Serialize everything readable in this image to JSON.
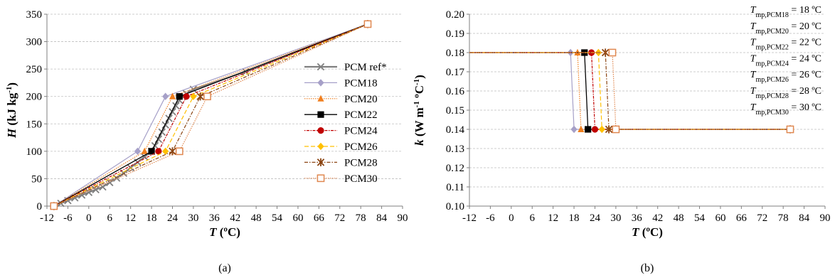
{
  "chart_data": [
    {
      "type": "line",
      "caption": "(a)",
      "xlabel": {
        "symbol": "T",
        "unit": "(ºC)"
      },
      "ylabel": {
        "symbol": "H",
        "unit_pre": "(kJ kg",
        "unit_sup": "-1",
        "unit_post": ")"
      },
      "xlim": [
        -12,
        90
      ],
      "ylim": [
        0,
        350
      ],
      "xticks": [
        -12,
        -6,
        0,
        6,
        12,
        18,
        24,
        30,
        36,
        42,
        48,
        54,
        60,
        66,
        72,
        78,
        84,
        90
      ],
      "yticks": [
        0,
        50,
        100,
        150,
        200,
        250,
        300,
        350
      ],
      "grid": "horizontal",
      "legend_position": "right",
      "series": [
        {
          "name": "PCM ref*",
          "color": "#7f7f7f",
          "marker": "x",
          "dash": "",
          "width": 2.2,
          "x": [
            -10,
            -8,
            -6,
            -4,
            -2,
            0,
            2,
            4,
            6,
            8,
            10,
            12,
            14,
            16,
            18,
            19,
            20,
            21,
            22,
            23,
            24,
            25,
            26,
            27,
            28,
            30,
            45,
            80
          ],
          "y": [
            0,
            5,
            10,
            15,
            20,
            25,
            30,
            35,
            43,
            51,
            60,
            70,
            80,
            90,
            100,
            110,
            122,
            135,
            148,
            160,
            172,
            183,
            193,
            200,
            205,
            213,
            245,
            332
          ]
        },
        {
          "name": "PCM18",
          "color": "#a6a0c8",
          "marker": "diamond",
          "dash": "",
          "width": 1.2,
          "x": [
            -10,
            14,
            22,
            80
          ],
          "y": [
            0,
            100,
            200,
            332
          ]
        },
        {
          "name": "PCM20",
          "color": "#f07f1f",
          "marker": "triangle",
          "dash": "1.5,1.5",
          "width": 1.2,
          "x": [
            -10,
            16,
            24,
            80
          ],
          "y": [
            0,
            100,
            200,
            332
          ]
        },
        {
          "name": "PCM22",
          "color": "#000000",
          "marker": "square",
          "dash": "",
          "width": 1.3,
          "x": [
            -10,
            18,
            26,
            80
          ],
          "y": [
            0,
            100,
            200,
            332
          ]
        },
        {
          "name": "PCM24",
          "color": "#c00000",
          "marker": "circle",
          "dash": "1.5,1.5,4,1.5",
          "width": 1.2,
          "x": [
            -10,
            20,
            28,
            80
          ],
          "y": [
            0,
            100,
            200,
            332
          ]
        },
        {
          "name": "PCM26",
          "color": "#ffc000",
          "marker": "diamond",
          "dash": "6,3",
          "width": 1.2,
          "x": [
            -10,
            22,
            30,
            80
          ],
          "y": [
            0,
            100,
            200,
            332
          ]
        },
        {
          "name": "PCM28",
          "color": "#8b4513",
          "marker": "star",
          "dash": "5,2,1.5,2",
          "width": 1.2,
          "x": [
            -10,
            24,
            32,
            80
          ],
          "y": [
            0,
            100,
            200,
            332
          ]
        },
        {
          "name": "PCM30",
          "color": "#e08850",
          "marker": "opensquare",
          "dash": "1.5,1.5",
          "width": 1.2,
          "x": [
            -10,
            26,
            34,
            80
          ],
          "y": [
            0,
            100,
            200,
            332
          ]
        }
      ]
    },
    {
      "type": "line",
      "caption": "(b)",
      "xlabel": {
        "symbol": "T",
        "unit": "(ºC)"
      },
      "ylabel": {
        "symbol": "k",
        "unit_pre": "(W m",
        "unit_sup": "-1",
        "unit_mid": " ºC",
        "unit_sup2": "-1",
        "unit_post": ")"
      },
      "xlim": [
        -12,
        90
      ],
      "ylim": [
        0.1,
        0.2
      ],
      "xticks": [
        -12,
        -6,
        0,
        6,
        12,
        18,
        24,
        30,
        36,
        42,
        48,
        54,
        60,
        66,
        72,
        78,
        84,
        90
      ],
      "yticks": [
        "0.10",
        "0.11",
        "0.12",
        "0.13",
        "0.14",
        "0.15",
        "0.16",
        "0.17",
        "0.18",
        "0.19",
        "0.20"
      ],
      "grid": "horizontal",
      "annotations": [
        {
          "symbol": "T",
          "sub": "mp,PCM18",
          "text": " = 18 ºC"
        },
        {
          "symbol": "T",
          "sub": "mp,PCM20",
          "text": " = 20 ºC"
        },
        {
          "symbol": "T",
          "sub": "mp,PCM22",
          "text": " = 22 ºC"
        },
        {
          "symbol": "T",
          "sub": "mp,PCM24",
          "text": " = 24 ºC"
        },
        {
          "symbol": "T",
          "sub": "mp,PCM26",
          "text": " = 26 ºC"
        },
        {
          "symbol": "T",
          "sub": "mp,PCM28",
          "text": " = 28 ºC"
        },
        {
          "symbol": "T",
          "sub": "mp,PCM30",
          "text": " = 30 ºC"
        }
      ],
      "series": [
        {
          "color": "#a6a0c8",
          "marker": "diamond",
          "dash": "",
          "width": 1.2,
          "x": [
            -12,
            17,
            18,
            80
          ],
          "y": [
            0.18,
            0.18,
            0.14,
            0.14
          ]
        },
        {
          "color": "#f07f1f",
          "marker": "triangle",
          "dash": "1.5,1.5",
          "width": 1.2,
          "x": [
            -12,
            19,
            20,
            80
          ],
          "y": [
            0.18,
            0.18,
            0.14,
            0.14
          ]
        },
        {
          "color": "#000000",
          "marker": "square",
          "dash": "",
          "width": 1.3,
          "x": [
            -12,
            21,
            22,
            80
          ],
          "y": [
            0.18,
            0.18,
            0.14,
            0.14
          ]
        },
        {
          "color": "#c00000",
          "marker": "circle",
          "dash": "1.5,1.5,4,1.5",
          "width": 1.2,
          "x": [
            -12,
            23,
            24,
            80
          ],
          "y": [
            0.18,
            0.18,
            0.14,
            0.14
          ]
        },
        {
          "color": "#ffc000",
          "marker": "diamond",
          "dash": "6,3",
          "width": 1.2,
          "x": [
            -12,
            25,
            26,
            80
          ],
          "y": [
            0.18,
            0.18,
            0.14,
            0.14
          ]
        },
        {
          "color": "#8b4513",
          "marker": "star",
          "dash": "5,2,1.5,2",
          "width": 1.2,
          "x": [
            -12,
            27,
            28,
            80
          ],
          "y": [
            0.18,
            0.18,
            0.14,
            0.14
          ]
        },
        {
          "color": "#e08850",
          "marker": "opensquare",
          "dash": "1.5,1.5",
          "width": 1.2,
          "x": [
            -12,
            29,
            30,
            80
          ],
          "y": [
            0.18,
            0.18,
            0.14,
            0.14
          ]
        }
      ]
    }
  ]
}
